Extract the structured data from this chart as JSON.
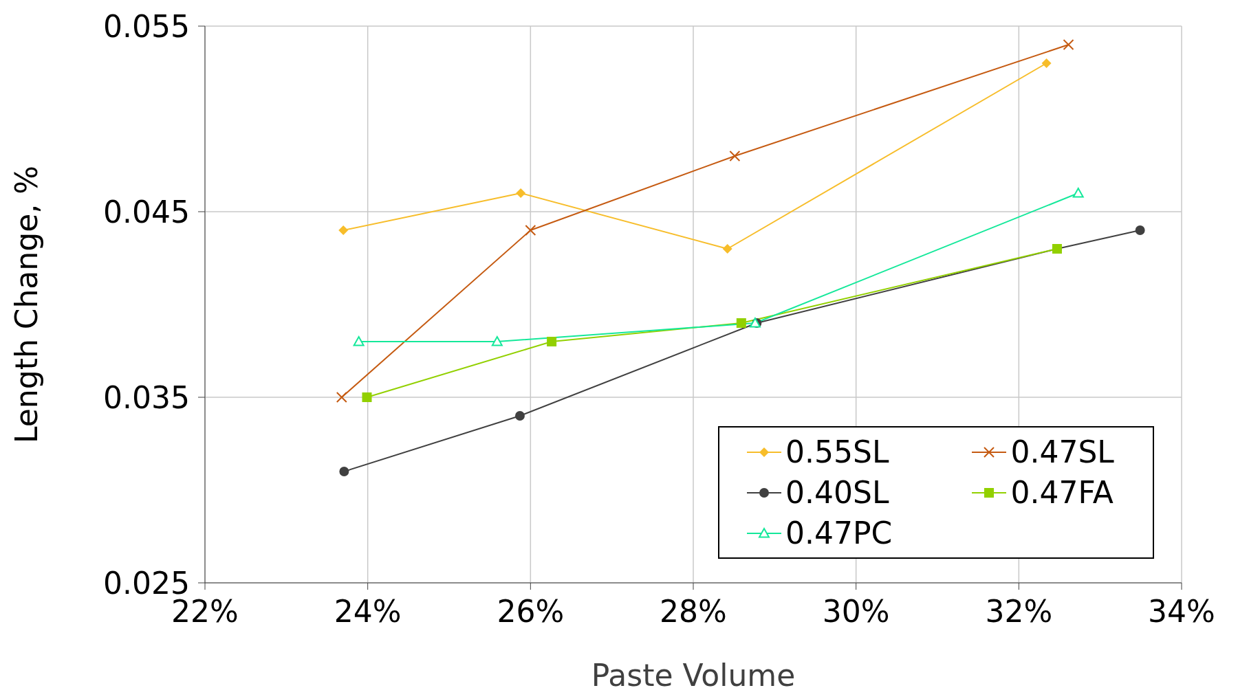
{
  "chart_data": {
    "type": "line",
    "xlabel": "Paste Volume",
    "ylabel": "Length Change, %",
    "xlim": [
      22,
      34
    ],
    "xticks": [
      {
        "value": 22,
        "label": "22%"
      },
      {
        "value": 24,
        "label": "24%"
      },
      {
        "value": 26,
        "label": "26%"
      },
      {
        "value": 28,
        "label": "28%"
      },
      {
        "value": 30,
        "label": "30%"
      },
      {
        "value": 32,
        "label": "32%"
      },
      {
        "value": 34,
        "label": "34%"
      }
    ],
    "ylim": [
      0.025,
      0.055
    ],
    "yticks": [
      0.025,
      0.035,
      0.045,
      0.055
    ],
    "grid": true,
    "legend": "bottom right",
    "series": [
      {
        "name": "0.55SL",
        "color": "#f7bd2a",
        "marker": "diamond",
        "x": [
          23.7,
          25.88,
          28.42,
          32.34
        ],
        "values": [
          0.044,
          0.046,
          0.043,
          0.053
        ]
      },
      {
        "name": "0.47SL",
        "color": "#c55a11",
        "marker": "cross",
        "x": [
          23.68,
          26.0,
          28.51,
          32.61
        ],
        "values": [
          0.035,
          0.044,
          0.048,
          0.054
        ]
      },
      {
        "name": "0.40SL",
        "color": "#404040",
        "marker": "circle",
        "x": [
          23.71,
          25.87,
          28.78,
          32.47,
          33.49
        ],
        "values": [
          0.031,
          0.034,
          0.039,
          0.043,
          0.044
        ]
      },
      {
        "name": "0.47FA",
        "color": "#92d000",
        "marker": "square",
        "x": [
          23.99,
          26.26,
          28.59,
          32.47
        ],
        "values": [
          0.035,
          0.038,
          0.039,
          0.043
        ]
      },
      {
        "name": "0.47PC",
        "color": "#14e89a",
        "marker": "triangle",
        "x": [
          23.89,
          25.59,
          28.76,
          32.73
        ],
        "values": [
          0.038,
          0.038,
          0.039,
          0.046
        ]
      }
    ]
  }
}
